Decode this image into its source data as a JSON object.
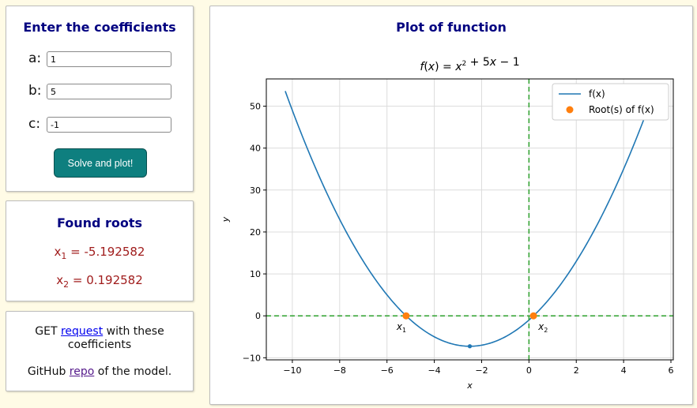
{
  "coefficients": {
    "title": "Enter the coefficients",
    "a_label": "a:",
    "a_value": "1",
    "b_label": "b:",
    "b_value": "5",
    "c_label": "c:",
    "c_value": "-1",
    "solve_button": "Solve and plot!"
  },
  "roots": {
    "title": "Found roots",
    "x1_var": "x",
    "x1_sub": "1",
    "x1_text": " = -5.192582",
    "x2_var": "x",
    "x2_sub": "2",
    "x2_text": " = 0.192582"
  },
  "links": {
    "get_prefix": "GET ",
    "request_link": "request",
    "get_suffix": " with these coefficients",
    "github_prefix": "GitHub ",
    "repo_link": "repo",
    "github_suffix": " of the model."
  },
  "plot": {
    "title": "Plot of function",
    "colors": {
      "curve": "#1f77b4",
      "roots": "#ff7f0e",
      "guides": "#2ca02c",
      "title": "#000080",
      "roots_text": "#a01c1c",
      "button": "#0e7f7f"
    }
  },
  "chart_data": {
    "type": "line",
    "title": "f(x) = x² + 5x − 1",
    "xlabel": "x",
    "ylabel": "y",
    "xlim": [
      -11.1,
      6.1
    ],
    "ylim": [
      -10.5,
      56.5
    ],
    "xticks": [
      -10,
      -8,
      -6,
      -4,
      -2,
      0,
      2,
      4,
      6
    ],
    "xtick_labels": [
      "−10",
      "−8",
      "−6",
      "−4",
      "−2",
      "0",
      "2",
      "4",
      "6"
    ],
    "yticks": [
      -10,
      0,
      10,
      20,
      30,
      40,
      50
    ],
    "ytick_labels": [
      "−10",
      "0",
      "10",
      "20",
      "30",
      "40",
      "50"
    ],
    "grid": true,
    "legend_position": "top-right",
    "function": {
      "a": 1,
      "b": 5,
      "c": -1,
      "x_range": [
        -10.3,
        5.3
      ]
    },
    "series": [
      {
        "name": "f(x)",
        "kind": "line"
      },
      {
        "name": "Root(s) of f(x)",
        "kind": "scatter",
        "x": [
          -5.192582,
          0.192582
        ],
        "y": [
          0,
          0
        ]
      }
    ],
    "root_labels": [
      {
        "var": "x",
        "sub": "1"
      },
      {
        "var": "x",
        "sub": "2"
      }
    ],
    "vertex": {
      "x": -2.5,
      "y": -7.25
    },
    "guides": {
      "horizontal_y": 0,
      "vertical_x": 0
    }
  }
}
